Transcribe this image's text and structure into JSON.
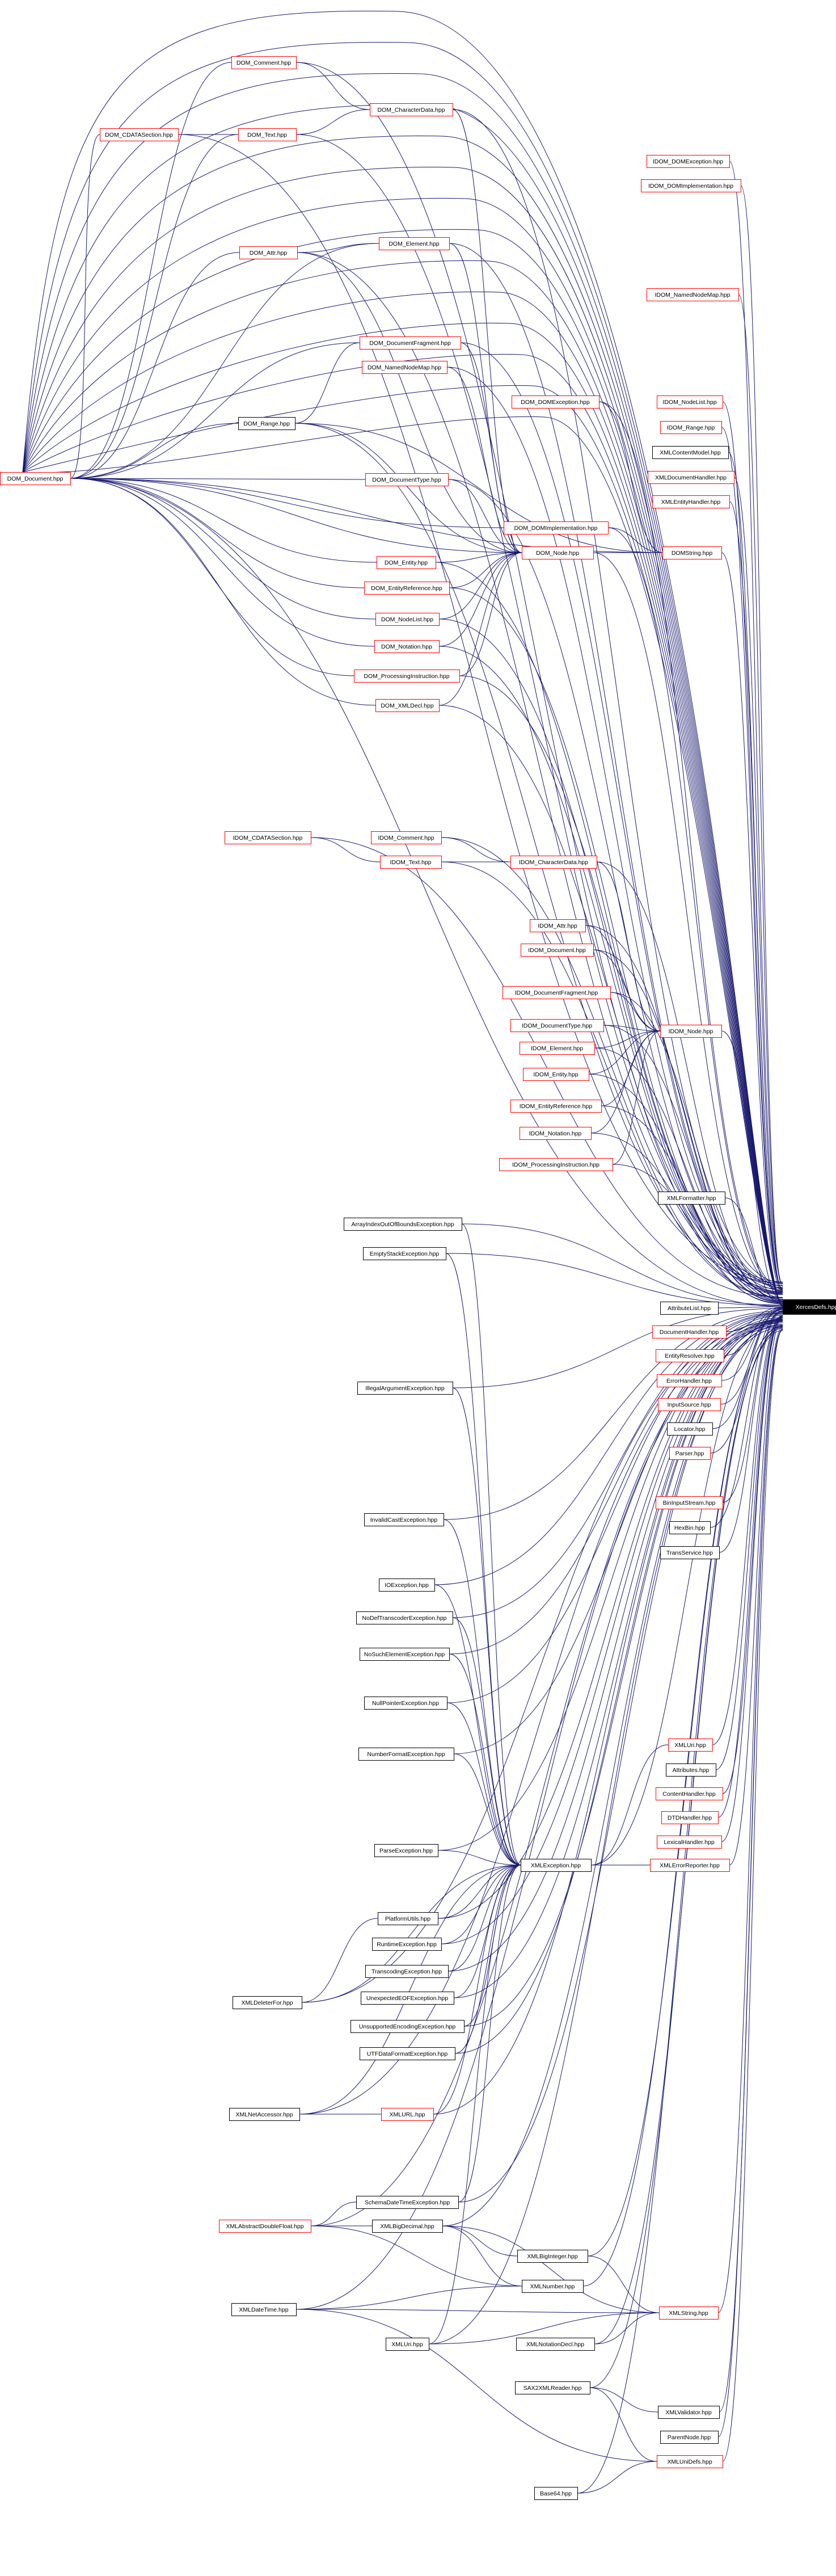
{
  "colors": {
    "edge": "#191970",
    "missing_border": "#ff0000",
    "normal_border": "#000000",
    "target_fill": "#000000"
  },
  "target": "XercesDefs.hpp",
  "nodes": [
    {
      "id": "xd",
      "label": "XercesDefs.hpp",
      "style": "target"
    },
    {
      "id": "domdoc",
      "label": "DOM_Document.hpp",
      "style": "red"
    },
    {
      "id": "domcomment",
      "label": "DOM_Comment.hpp",
      "style": "red"
    },
    {
      "id": "domcdata",
      "label": "DOM_CDATASection.hpp",
      "style": "red"
    },
    {
      "id": "domtext",
      "label": "DOM_Text.hpp",
      "style": "red"
    },
    {
      "id": "domchar",
      "label": "DOM_CharacterData.hpp",
      "style": "red"
    },
    {
      "id": "idomdomexc",
      "label": "IDOM_DOMException.hpp",
      "style": "red"
    },
    {
      "id": "idomdomimpl",
      "label": "IDOM_DOMImplementation.hpp",
      "style": "red"
    },
    {
      "id": "domattr",
      "label": "DOM_Attr.hpp",
      "style": "red"
    },
    {
      "id": "domelem",
      "label": "DOM_Element.hpp",
      "style": "red"
    },
    {
      "id": "idomnnm",
      "label": "IDOM_NamedNodeMap.hpp",
      "style": "red"
    },
    {
      "id": "domfrag",
      "label": "DOM_DocumentFragment.hpp",
      "style": "red"
    },
    {
      "id": "domnnm",
      "label": "DOM_NamedNodeMap.hpp",
      "style": "red"
    },
    {
      "id": "domdomexc",
      "label": "DOM_DOMException.hpp",
      "style": "red"
    },
    {
      "id": "idomnodelist",
      "label": "IDOM_NodeList.hpp",
      "style": "red"
    },
    {
      "id": "idomrange",
      "label": "IDOM_Range.hpp",
      "style": "red"
    },
    {
      "id": "domrange",
      "label": "DOM_Range.hpp",
      "style": "black"
    },
    {
      "id": "xmlcontentmodel",
      "label": "XMLContentModel.hpp",
      "style": "black"
    },
    {
      "id": "domdoctype",
      "label": "DOM_DocumentType.hpp",
      "style": "red"
    },
    {
      "id": "xmldochandler",
      "label": "XMLDocumentHandler.hpp",
      "style": "red"
    },
    {
      "id": "xmlentityhandler",
      "label": "XMLEntityHandler.hpp",
      "style": "red"
    },
    {
      "id": "domdomimpl",
      "label": "DOM_DOMImplementation.hpp",
      "style": "red"
    },
    {
      "id": "domnode",
      "label": "DOM_Node.hpp",
      "style": "red"
    },
    {
      "id": "domstring",
      "label": "DOMString.hpp",
      "style": "red"
    },
    {
      "id": "domentity",
      "label": "DOM_Entity.hpp",
      "style": "red"
    },
    {
      "id": "domentref",
      "label": "DOM_EntityReference.hpp",
      "style": "red"
    },
    {
      "id": "domnodelist",
      "label": "DOM_NodeList.hpp",
      "style": "red"
    },
    {
      "id": "domnotation",
      "label": "DOM_Notation.hpp",
      "style": "red"
    },
    {
      "id": "dompi",
      "label": "DOM_ProcessingInstruction.hpp",
      "style": "red"
    },
    {
      "id": "domxmldecl",
      "label": "DOM_XMLDecl.hpp",
      "style": "red"
    },
    {
      "id": "idomcdata",
      "label": "IDOM_CDATASection.hpp",
      "style": "red"
    },
    {
      "id": "idomcomment",
      "label": "IDOM_Comment.hpp",
      "style": "red"
    },
    {
      "id": "idomtext",
      "label": "IDOM_Text.hpp",
      "style": "red"
    },
    {
      "id": "idomchar",
      "label": "IDOM_CharacterData.hpp",
      "style": "red"
    },
    {
      "id": "idomattr",
      "label": "IDOM_Attr.hpp",
      "style": "red"
    },
    {
      "id": "idomdoc",
      "label": "IDOM_Document.hpp",
      "style": "red"
    },
    {
      "id": "idomfrag",
      "label": "IDOM_DocumentFragment.hpp",
      "style": "red"
    },
    {
      "id": "idomdoctype",
      "label": "IDOM_DocumentType.hpp",
      "style": "red"
    },
    {
      "id": "idomnode",
      "label": "IDOM_Node.hpp",
      "style": "red"
    },
    {
      "id": "idomelem",
      "label": "IDOM_Element.hpp",
      "style": "red"
    },
    {
      "id": "idomentity",
      "label": "IDOM_Entity.hpp",
      "style": "red"
    },
    {
      "id": "idomentref",
      "label": "IDOM_EntityReference.hpp",
      "style": "red"
    },
    {
      "id": "idomnotation",
      "label": "IDOM_Notation.hpp",
      "style": "red"
    },
    {
      "id": "idompi",
      "label": "IDOM_ProcessingInstruction.hpp",
      "style": "red"
    },
    {
      "id": "xmlformatter",
      "label": "XMLFormatter.hpp",
      "style": "black"
    },
    {
      "id": "aioob",
      "label": "ArrayIndexOutOfBoundsException.hpp",
      "style": "black"
    },
    {
      "id": "emptystack",
      "label": "EmptyStackException.hpp",
      "style": "black"
    },
    {
      "id": "attrlist",
      "label": "AttributeList.hpp",
      "style": "black"
    },
    {
      "id": "dochandler",
      "label": "DocumentHandler.hpp",
      "style": "red"
    },
    {
      "id": "entityresolver",
      "label": "EntityResolver.hpp",
      "style": "red"
    },
    {
      "id": "illegalarg",
      "label": "IllegalArgumentException.hpp",
      "style": "black"
    },
    {
      "id": "errorhandler",
      "label": "ErrorHandler.hpp",
      "style": "red"
    },
    {
      "id": "inputsource",
      "label": "InputSource.hpp",
      "style": "red"
    },
    {
      "id": "locator",
      "label": "Locator.hpp",
      "style": "black"
    },
    {
      "id": "parser",
      "label": "Parser.hpp",
      "style": "red"
    },
    {
      "id": "bininputstream",
      "label": "BinInputStream.hpp",
      "style": "red"
    },
    {
      "id": "invalidcast",
      "label": "InvalidCastException.hpp",
      "style": "black"
    },
    {
      "id": "hexbin",
      "label": "HexBin.hpp",
      "style": "black"
    },
    {
      "id": "transservice",
      "label": "TransService.hpp",
      "style": "black"
    },
    {
      "id": "ioexc",
      "label": "IOException.hpp",
      "style": "black"
    },
    {
      "id": "nodeftrans",
      "label": "NoDefTranscoderException.hpp",
      "style": "black"
    },
    {
      "id": "nosuchelem",
      "label": "NoSuchElementException.hpp",
      "style": "black"
    },
    {
      "id": "nullptr",
      "label": "NullPointerException.hpp",
      "style": "black"
    },
    {
      "id": "xmluri",
      "label": "XMLUri.hpp",
      "style": "red"
    },
    {
      "id": "numberformat",
      "label": "NumberFormatException.hpp",
      "style": "black"
    },
    {
      "id": "attributes",
      "label": "Attributes.hpp",
      "style": "black"
    },
    {
      "id": "contenthandler",
      "label": "ContentHandler.hpp",
      "style": "red"
    },
    {
      "id": "dtdhandler",
      "label": "DTDHandler.hpp",
      "style": "red"
    },
    {
      "id": "lexicalhandler",
      "label": "LexicalHandler.hpp",
      "style": "red"
    },
    {
      "id": "parseexc",
      "label": "ParseException.hpp",
      "style": "black"
    },
    {
      "id": "xmlexc",
      "label": "XMLException.hpp",
      "style": "black"
    },
    {
      "id": "xmlerrreporter",
      "label": "XMLErrorReporter.hpp",
      "style": "red"
    },
    {
      "id": "platformutils",
      "label": "PlatformUtils.hpp",
      "style": "black"
    },
    {
      "id": "runtimeexc",
      "label": "RuntimeException.hpp",
      "style": "black"
    },
    {
      "id": "transcodingexc",
      "label": "TranscodingException.hpp",
      "style": "black"
    },
    {
      "id": "xmldeleter",
      "label": "XMLDeleterFor.hpp",
      "style": "black"
    },
    {
      "id": "unexpeof",
      "label": "UnexpectedEOFException.hpp",
      "style": "black"
    },
    {
      "id": "unsupenc",
      "label": "UnsupportedEncodingException.hpp",
      "style": "black"
    },
    {
      "id": "utfdata",
      "label": "UTFDataFormatException.hpp",
      "style": "black"
    },
    {
      "id": "xmlnetaccessor",
      "label": "XMLNetAccessor.hpp",
      "style": "black"
    },
    {
      "id": "xmlurl",
      "label": "XMLURL.hpp",
      "style": "red"
    },
    {
      "id": "schemadt",
      "label": "SchemaDateTimeException.hpp",
      "style": "black"
    },
    {
      "id": "xmlabsdouble",
      "label": "XMLAbstractDoubleFloat.hpp",
      "style": "red"
    },
    {
      "id": "xmlbigdecimal",
      "label": "XMLBigDecimal.hpp",
      "style": "black"
    },
    {
      "id": "xmlbiginteger",
      "label": "XMLBigInteger.hpp",
      "style": "black"
    },
    {
      "id": "xmlnumber",
      "label": "XMLNumber.hpp",
      "style": "black"
    },
    {
      "id": "xmldatetime",
      "label": "XMLDateTime.hpp",
      "style": "black"
    },
    {
      "id": "xmlstring",
      "label": "XMLString.hpp",
      "style": "red"
    },
    {
      "id": "xmluri2",
      "label": "XMLUri.hpp",
      "style": "black"
    },
    {
      "id": "xmlnotationdecl",
      "label": "XMLNotationDecl.hpp",
      "style": "black"
    },
    {
      "id": "saxxmlreader",
      "label": "SAX2XMLReader.hpp",
      "style": "black"
    },
    {
      "id": "xmlvalidator",
      "label": "XMLValidator.hpp",
      "style": "black"
    },
    {
      "id": "parentnode",
      "label": "ParentNode.hpp",
      "style": "black"
    },
    {
      "id": "xmlunidefs",
      "label": "XMLUniDefs.hpp",
      "style": "red"
    },
    {
      "id": "base64",
      "label": "Base64.hpp",
      "style": "black"
    }
  ]
}
